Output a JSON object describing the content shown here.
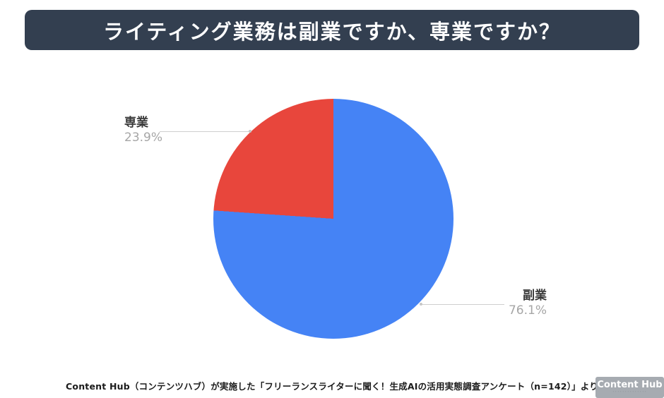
{
  "title": "ライティング業務は副業ですか、専業ですか？",
  "colors": {
    "title_background": "#333F50",
    "slice_blue": "#4583F5",
    "slice_red": "#E8463C",
    "value_text": "#A6A6A6"
  },
  "chart_data": {
    "type": "pie",
    "title": "ライティング業務は副業ですか、専業ですか？",
    "slices": [
      {
        "label": "副業",
        "value": 76.1,
        "color": "#4583F5"
      },
      {
        "label": "専業",
        "value": 23.9,
        "color": "#E8463C"
      }
    ],
    "start_angle_deg": 0,
    "direction": "clockwise",
    "value_suffix": "%",
    "legend_position": "none"
  },
  "callouts": {
    "senGyo": {
      "label": "専業",
      "value_text": "23.9%"
    },
    "fukuGyo": {
      "label": "副業",
      "value_text": "76.1%"
    }
  },
  "footer": {
    "source": "Content Hub（コンテンツハブ）が実施した「フリーランスライターに聞く！生成AIの活用実態調査アンケート（n=142）」より"
  },
  "logo": {
    "name": "Content Hub",
    "tagline": "･･････････････"
  }
}
